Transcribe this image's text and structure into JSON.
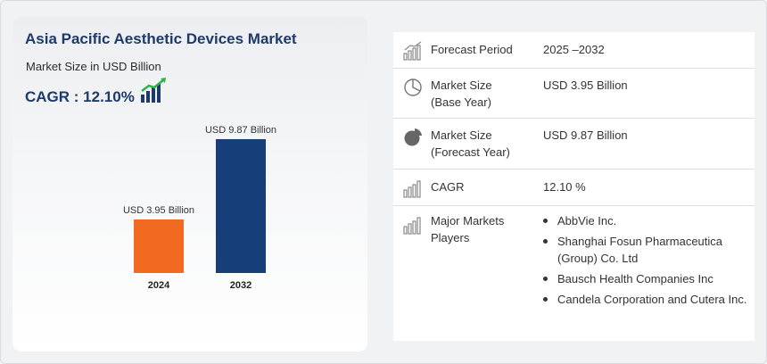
{
  "header": {
    "title": "Asia Pacific Aesthetic Devices Market",
    "subtitle": "Market Size in USD Billion",
    "cagr_label": "CAGR : 12.10%"
  },
  "chart_data": {
    "type": "bar",
    "categories": [
      "2024",
      "2032"
    ],
    "values": [
      3.95,
      9.87
    ],
    "value_labels": [
      "USD 3.95 Billion",
      "USD 9.87 Billion"
    ],
    "ylim": [
      0,
      10
    ],
    "grid": false,
    "colors": [
      "#f26a21",
      "#163f7a"
    ]
  },
  "details": {
    "rows": [
      {
        "icon": "bar-growth-icon",
        "label": "Forecast Period",
        "value": "2025 –2032"
      },
      {
        "icon": "pie-outline-icon",
        "label": "Market Size\n(Base Year)",
        "value": "USD 3.95 Billion"
      },
      {
        "icon": "pie-filled-icon",
        "label": "Market Size\n(Forecast Year)",
        "value": "USD 9.87 Billion"
      },
      {
        "icon": "bar-chart-icon",
        "label": "CAGR",
        "value": "12.10 %"
      },
      {
        "icon": "bar-chart-icon",
        "label": "Major Markets\nPlayers",
        "value": ""
      }
    ],
    "players": [
      "AbbVie Inc.",
      "Shanghai Fosun Pharmaceutica (Group) Co. Ltd",
      "Bausch Health Companies Inc",
      "Candela Corporation and Cutera Inc."
    ]
  }
}
